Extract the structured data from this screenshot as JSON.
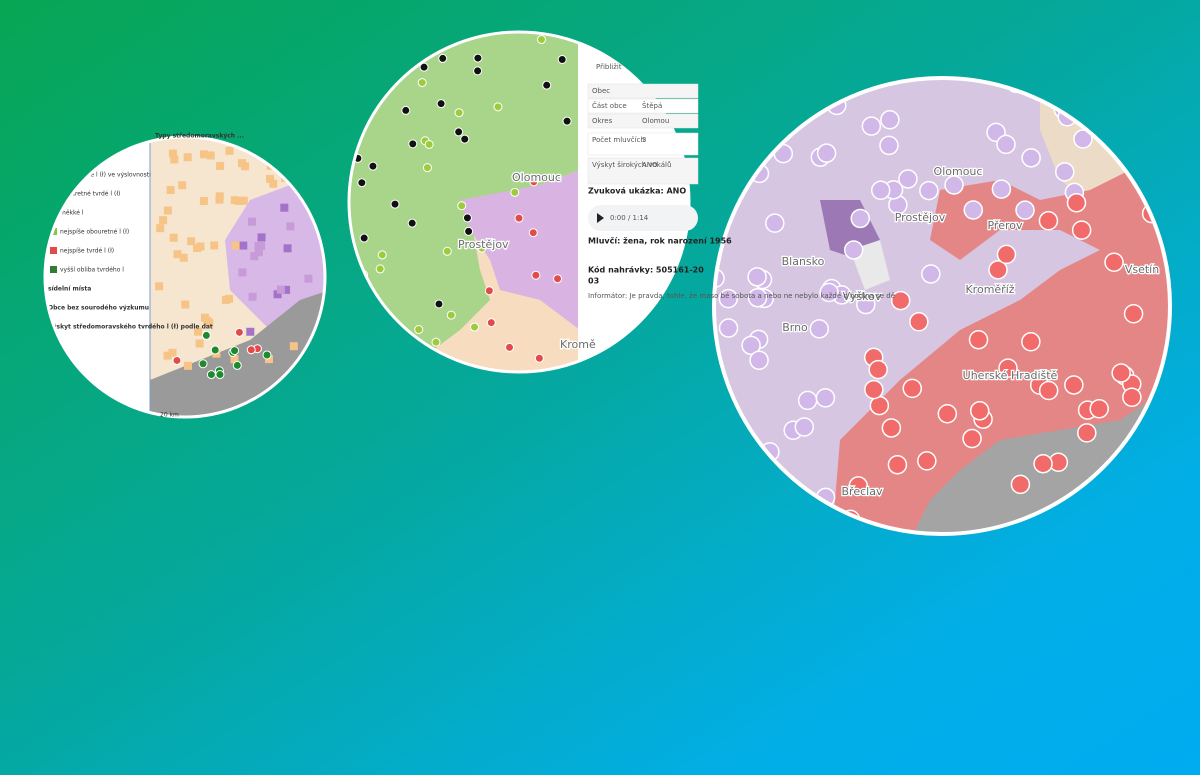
{
  "left_panel": {
    "title": "Typy středomoravských ...",
    "legend_items": [
      "starší tvrdé l (ł) ve výslovnosti",
      "obouretné tvrdé l (ł)",
      "měkké l",
      "nejspíše obouretné l (ł)",
      "nejspíše tvrdé l (ł)",
      "vyšší obliba tvrdého l",
      "sídelní místa",
      "Obce bez sourodého výzkumu",
      "Výskyt středomoravského tvrdého l (ł) podle dat"
    ],
    "scale": "20 km"
  },
  "middle_panel": {
    "search": "Přibližit",
    "table": [
      [
        "Obec"
      ],
      [
        "Část obce",
        "Štěpá"
      ],
      [
        "Okres",
        "Olomou"
      ],
      [
        "Počet mluvčích",
        "3"
      ],
      [
        "Výskyt širokých vokálů",
        "ANO"
      ]
    ],
    "sound_sample": "Zvuková ukázka: ANO",
    "audio_time": "0:00 / 1:14",
    "speaker": "Mluvčí: žena, rok narození 1956",
    "recording_code": "Kód nahrávky: 505161-20",
    "recording_code_end": "03",
    "informant": "Informátor: Je pravda, tohle, že maso bé sobota a nebo ne nebylo každé d hodina se dě",
    "map_labels": [
      "Olomouc",
      "Prostějov",
      "Kromě"
    ]
  },
  "right_panel": {
    "map_labels": [
      "Olomouc",
      "Prostějov",
      "Přerov",
      "Blansko",
      "Vyškov",
      "Kroměříž",
      "Brno",
      "Uherské Hradiště",
      "Vsetín",
      "Břeclav"
    ]
  }
}
